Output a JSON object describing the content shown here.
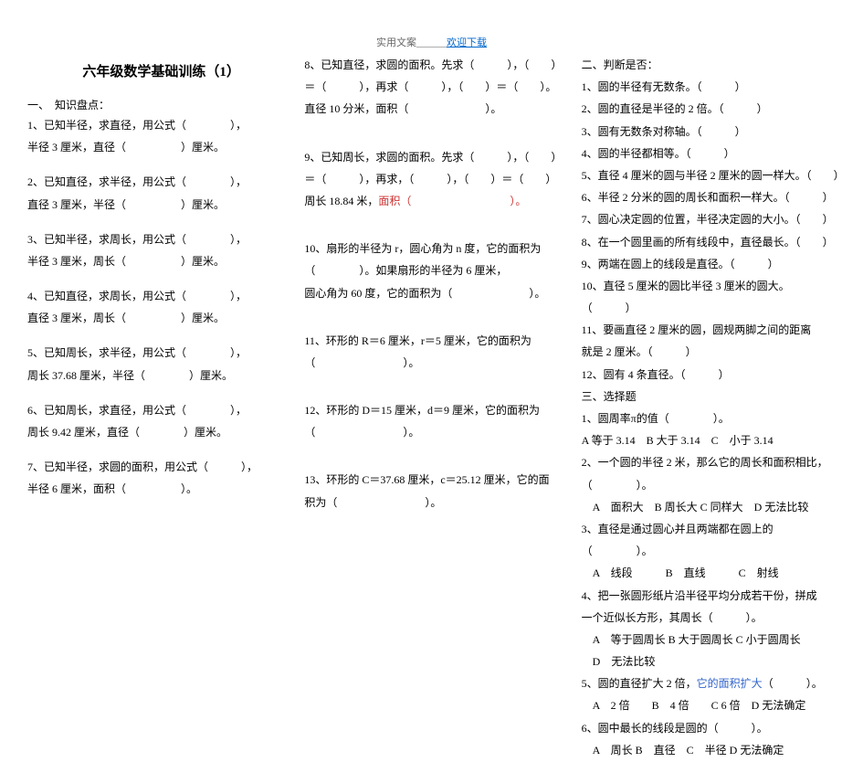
{
  "header_prefix": "实用文案",
  "header_link": "欢迎下载",
  "title": "六年级数学基础训练（1）",
  "col1": {
    "sec1_head": "一、　知识盘点：",
    "q1a": "1、已知半径，求直径，用公式（　　　　），",
    "q1b": "半径 3 厘米，直径（　　　　　）厘米。",
    "q2a": "2、已知直径，求半径，用公式（　　　　），",
    "q2b": "直径 3 厘米，半径（　　　　　）厘米。",
    "q3a": "3、已知半径，求周长，用公式（　　　　），",
    "q3b": "半径 3 厘米，周长（　　　　　）厘米。",
    "q4a": "4、已知直径，求周长，用公式（　　　　），",
    "q4b": "直径 3 厘米，周长（　　　　　）厘米。",
    "q5a": "5、已知周长，求半径，用公式（　　　　），",
    "q5b": "周长 37.68 厘米，半径（　　　　）厘米。",
    "q6a": "6、已知周长，求直径，用公式（　　　　），",
    "q6b": "周长 9.42 厘米，直径（　　　　）厘米。",
    "q7a": "7、已知半径，求圆的面积，用公式（　　　），",
    "q7b": "半径 6 厘米，面积（　　　　　）。"
  },
  "col2": {
    "q8a": "8、已知直径，求圆的面积。先求（　　　），（　　）",
    "q8b": "＝（　　　），再求（　　　），（　　）＝（　　）。",
    "q8c": "直径 10 分米，面积（　　　　　　　）。",
    "q9a": "9、已知周长，求圆的面积。先求（　　　），（　　）",
    "q9b": "＝（　　　），再求，（　　　），（　　）＝（　　）",
    "q9c": "周长 18.84 米，",
    "q9c_red": "面积（　　　　　　　　　）。",
    "q10a": "10、扇形的半径为 r，圆心角为 n 度，它的面积为",
    "q10b": "（　　　　）。如果扇形的半径为 6 厘米，",
    "q10c": "圆心角为 60 度，它的面积为（　　　　　　　）。",
    "q11a": "11、环形的 R＝6 厘米，r＝5 厘米，它的面积为",
    "q11b": "（　　　　　　　　）。",
    "q12a": "12、环形的 D＝15 厘米，d＝9 厘米，它的面积为",
    "q12b": "（　　　　　　　　）。",
    "q13a": "13、环形的 C＝37.68 厘米，c＝25.12 厘米，它的面",
    "q13b": "积为（　　　　　　　　）。"
  },
  "col3": {
    "sec2_head": "二、判断是否：",
    "j1": "1、圆的半径有无数条。（　　　）",
    "j2": "2、圆的直径是半径的 2 倍。（　　　）",
    "j3": "3、圆有无数条对称轴。（　　　）",
    "j4": "4、圆的半径都相等。（　　　）",
    "j5": "5、直径 4 厘米的圆与半径 2 厘米的圆一样大。（　　）",
    "j6": "6、半径 2 分米的圆的周长和面积一样大。（　　　）",
    "j7": "7、圆心决定圆的位置，半径决定圆的大小。（　　）",
    "j8": "8、在一个圆里画的所有线段中，直径最长。（　　）",
    "j9": "9、两端在圆上的线段是直径。（　　　）",
    "j10a": "10、直径 5 厘米的圆比半径 3 厘米的圆大。",
    "j10b": "（　　　）",
    "j11a": "11、要画直径 2 厘米的圆，圆规两脚之间的距离",
    "j11b": "就是 2 厘米。（　　　）",
    "j12": "12、圆有 4 条直径。（　　　）",
    "sec3_head": "三、选择题",
    "c1a": "1、圆周率π的值（　　　　）。",
    "c1b": "A 等于 3.14　B 大于 3.14　C　小于 3.14",
    "c2a": "2、一个圆的半径 2 米，那么它的周长和面积相比，",
    "c2b": "（　　　　）。",
    "c2c": "　A　面积大　B 周长大 C 同样大　D 无法比较",
    "c3a": "3、直径是通过圆心并且两端都在圆上的",
    "c3b": "（　　　　）。",
    "c3c": "　A　线段　　　B　直线　　　C　射线",
    "c4a": "4、把一张圆形纸片沿半径平均分成若干份，拼成",
    "c4b": "一个近似长方形，其周长（　　　）。",
    "c4c": "　A　等于圆周长 B 大于圆周长 C 小于圆周长",
    "c4d": "　D　无法比较",
    "c5a": "5、圆的直径扩大 2 倍，",
    "c5a_blue": "它的面积扩大",
    "c5a_end": "（　　　）。",
    "c5b": "　A　2 倍　　B　4 倍　　C 6 倍　D 无法确定",
    "c6a": "6、圆中最长的线段是圆的（　　　）。",
    "c6b": "　A　周长 B　直径　C　半径 D 无法确定"
  }
}
